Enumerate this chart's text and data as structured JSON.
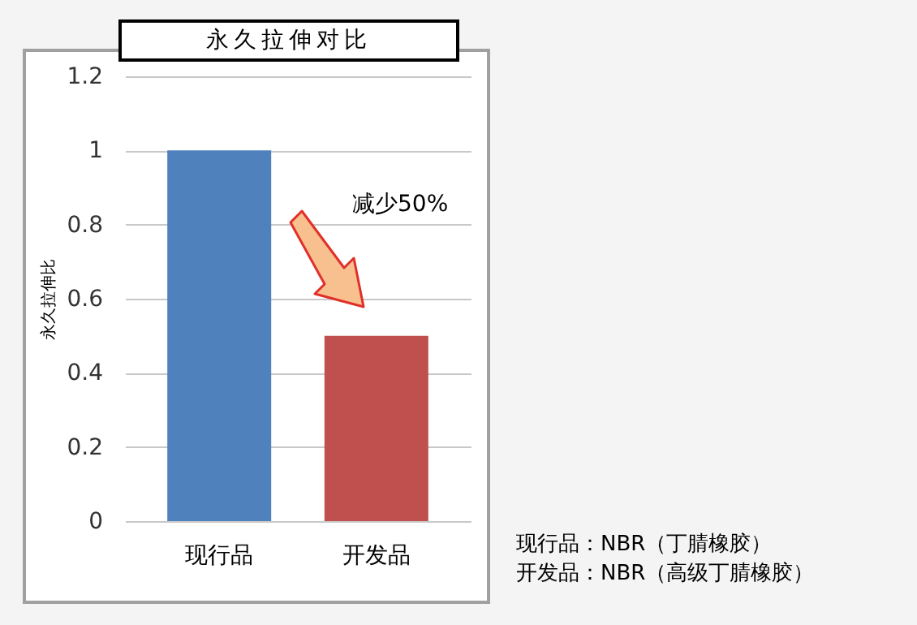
{
  "chart_data": {
    "type": "bar",
    "title": "永久拉伸对比",
    "ylabel": "永久拉伸比",
    "categories": [
      "现行品",
      "开发品"
    ],
    "values": [
      1,
      0.5
    ],
    "colors": [
      "#4f81bd",
      "#c0504d"
    ],
    "ylim": [
      0,
      1.2
    ],
    "yticks": [
      0,
      0.2,
      0.4,
      0.6,
      0.8,
      1,
      1.2
    ],
    "grid": "y",
    "annotations": [
      "减少50%",
      "现行品：NBR（丁腈橡胶）",
      "开发品：NBR（高级丁腈橡胶）"
    ]
  }
}
